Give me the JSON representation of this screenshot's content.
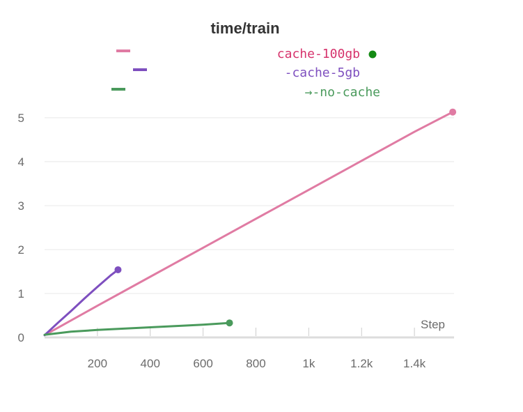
{
  "chart_data": {
    "type": "line",
    "title": "time/train",
    "xlabel": "Step",
    "ylabel": "",
    "xlim": [
      0,
      1550
    ],
    "ylim": [
      0,
      5.3
    ],
    "x_ticks": [
      {
        "value": 200,
        "label": "200"
      },
      {
        "value": 400,
        "label": "400"
      },
      {
        "value": 600,
        "label": "600"
      },
      {
        "value": 800,
        "label": "800"
      },
      {
        "value": 1000,
        "label": "1k"
      },
      {
        "value": 1200,
        "label": "1.2k"
      },
      {
        "value": 1400,
        "label": "1.4k"
      }
    ],
    "y_ticks": [
      {
        "value": 0,
        "label": "0"
      },
      {
        "value": 1,
        "label": "1"
      },
      {
        "value": 2,
        "label": "2"
      },
      {
        "value": 3,
        "label": "3"
      },
      {
        "value": 4,
        "label": "4"
      },
      {
        "value": 5,
        "label": "5"
      }
    ],
    "grid": true,
    "legend_position": "top",
    "legend_marker_color": "#138a13",
    "series": [
      {
        "name": "cache-100gb",
        "legend_label": "cache-100gb",
        "color": "#e07ba3",
        "text_color": "#d6336c",
        "x": [
          0,
          200,
          400,
          600,
          800,
          1000,
          1200,
          1400,
          1545
        ],
        "y": [
          0.05,
          0.72,
          1.38,
          2.04,
          2.7,
          3.36,
          4.02,
          4.68,
          5.13
        ]
      },
      {
        "name": "cache-5gb",
        "legend_label": "-cache-5gb",
        "color": "#7e4fbf",
        "text_color": "#7e4fbf",
        "x": [
          0,
          50,
          100,
          150,
          200,
          250,
          278
        ],
        "y": [
          0.05,
          0.33,
          0.6,
          0.88,
          1.15,
          1.41,
          1.54
        ]
      },
      {
        "name": "no-cache",
        "legend_label": "→-no-cache",
        "color": "#4a9a5c",
        "text_color": "#4a9a5c",
        "x": [
          0,
          100,
          200,
          300,
          400,
          500,
          600,
          700
        ],
        "y": [
          0.06,
          0.13,
          0.17,
          0.2,
          0.23,
          0.26,
          0.29,
          0.33
        ]
      }
    ]
  }
}
